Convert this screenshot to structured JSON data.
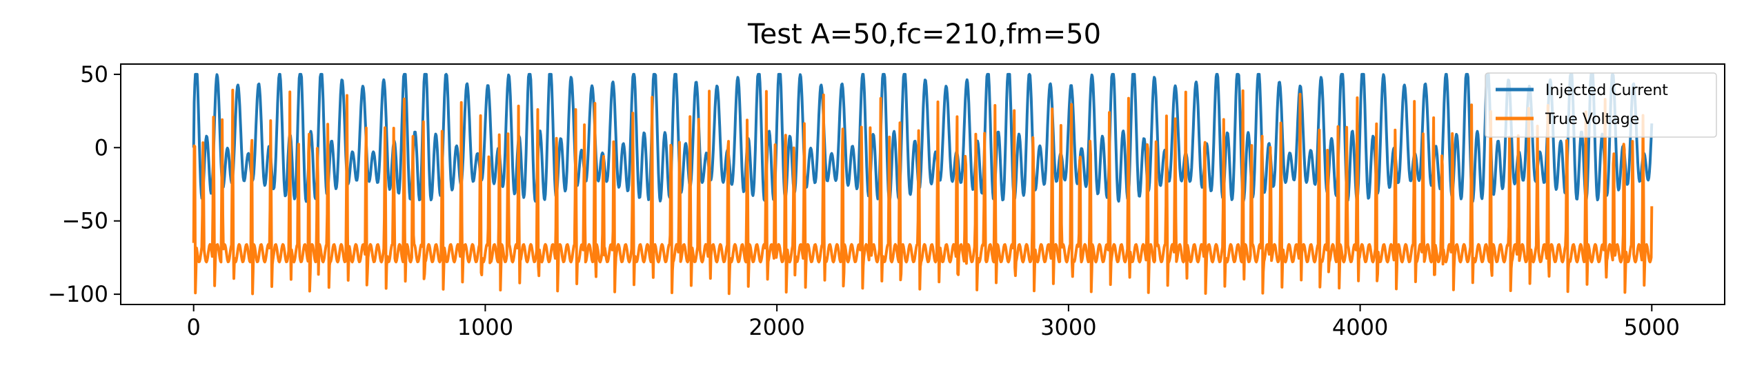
{
  "chart_data": {
    "type": "line",
    "title": "Test A=50,fc=210,fm=50",
    "xlabel": "",
    "ylabel": "",
    "xlim": [
      -250,
      5250
    ],
    "ylim": [
      -107,
      57
    ],
    "xticks": [
      0,
      1000,
      2000,
      3000,
      4000,
      5000
    ],
    "xtick_labels": [
      "0",
      "1000",
      "2000",
      "3000",
      "4000",
      "5000"
    ],
    "yticks": [
      50,
      0,
      -50,
      -100
    ],
    "ytick_labels": [
      "50",
      "0",
      "−50",
      "−100"
    ],
    "grid": false,
    "legend_position": "upper-right",
    "series": [
      {
        "name": "Injected Current",
        "color": "#1f77b4",
        "model": "A*sin(2*pi*fc*t)+... AM-like waveform, amplitude up to 50",
        "x_range": [
          0,
          5000
        ],
        "y_range": [
          -50,
          50
        ]
      },
      {
        "name": "True Voltage",
        "color": "#ff7f0e",
        "x_range": [
          0,
          5000
        ],
        "y_range": [
          -100,
          42
        ]
      }
    ]
  }
}
